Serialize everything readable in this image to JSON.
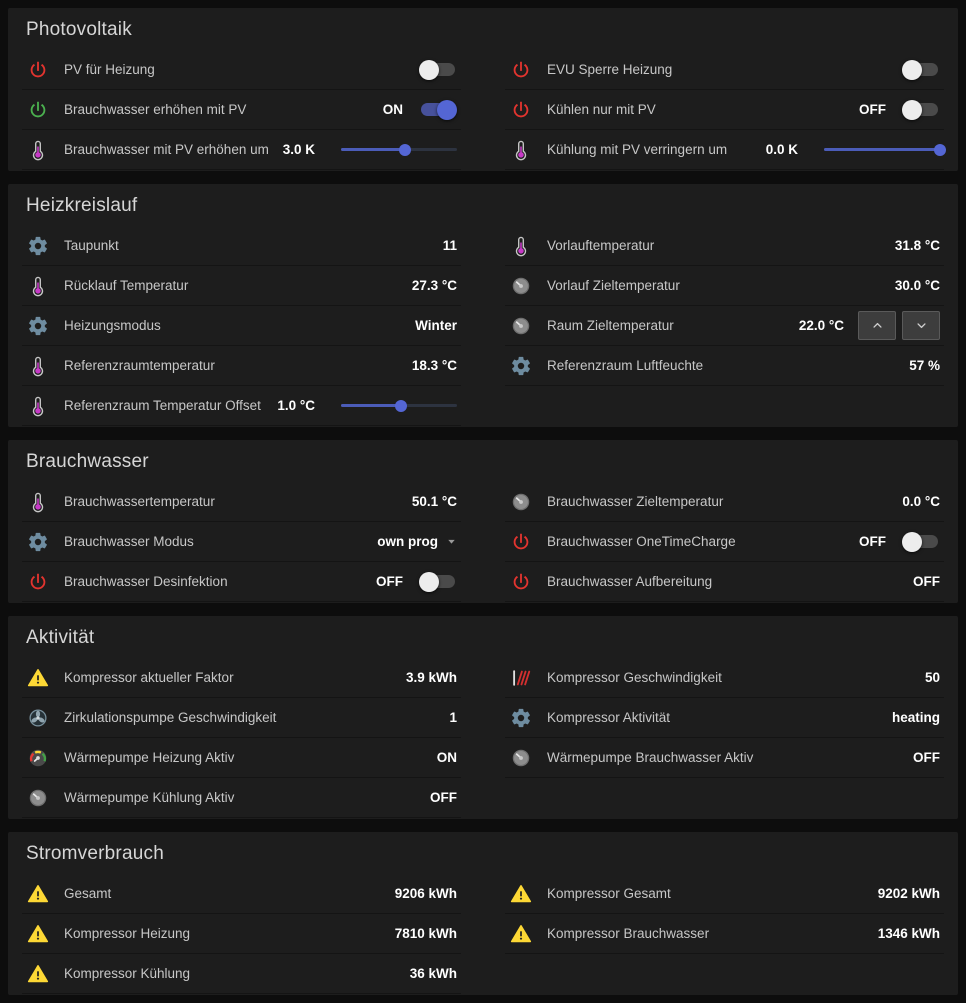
{
  "colors": {
    "page_bg": "#0d0d0d",
    "card_bg": "#1d1d1d",
    "accent_blue": "#5466d4",
    "power_red": "#e3342f",
    "power_green": "#4bb04f",
    "gear_blue_gray": "#6e8ca0",
    "thermometer_purple": "#c73ac7",
    "warning_yellow": "#fdd835"
  },
  "sections": [
    {
      "title": "Photovoltaik",
      "left": [
        {
          "icon": "power-icon",
          "icon_color": "#e3342f",
          "label": "PV für Heizung",
          "control": "toggle",
          "on": false
        },
        {
          "icon": "power-icon",
          "icon_color": "#4bb04f",
          "label": "Brauchwasser erhöhen mit PV",
          "state": "ON",
          "control": "toggle",
          "on": true
        },
        {
          "icon": "thermometer-icon",
          "label": "Brauchwasser mit PV erhöhen um",
          "value": "3.0 K",
          "control": "slider",
          "slider_percent": 55
        }
      ],
      "right": [
        {
          "icon": "power-icon",
          "icon_color": "#e3342f",
          "label": "EVU Sperre Heizung",
          "control": "toggle",
          "on": false
        },
        {
          "icon": "power-icon",
          "icon_color": "#e3342f",
          "label": "Kühlen nur mit PV",
          "state": "OFF",
          "control": "toggle",
          "on": false
        },
        {
          "icon": "thermometer-icon",
          "label": "Kühlung mit PV verringern um",
          "value": "0.0 K",
          "control": "slider",
          "slider_percent": 100
        }
      ]
    },
    {
      "title": "Heizkreislauf",
      "left": [
        {
          "icon": "gear-icon",
          "label": "Taupunkt",
          "value": "11"
        },
        {
          "icon": "thermometer-icon",
          "label": "Rücklauf Temperatur",
          "value": "27.3 °C"
        },
        {
          "icon": "gear-icon",
          "label": "Heizungsmodus",
          "value": "Winter"
        },
        {
          "icon": "thermometer-icon",
          "label": "Referenzraumtemperatur",
          "value": "18.3 °C"
        },
        {
          "icon": "thermometer-icon",
          "label": "Referenzraum Temperatur Offset",
          "value": "1.0 °C",
          "control": "slider",
          "slider_percent": 52
        }
      ],
      "right": [
        {
          "icon": "thermometer-icon",
          "label": "Vorlauftemperatur",
          "value": "31.8 °C"
        },
        {
          "icon": "gauge-icon",
          "label": "Vorlauf Zieltemperatur",
          "value": "30.0 °C"
        },
        {
          "icon": "gauge-icon",
          "label": "Raum Zieltemperatur",
          "value": "22.0 °C",
          "control": "stepper"
        },
        {
          "icon": "gear-icon",
          "label": "Referenzraum Luftfeuchte",
          "value": "57 %"
        }
      ]
    },
    {
      "title": "Brauchwasser",
      "left": [
        {
          "icon": "thermometer-icon",
          "label": "Brauchwassertemperatur",
          "value": "50.1 °C"
        },
        {
          "icon": "gear-icon",
          "label": "Brauchwasser Modus",
          "value": "own prog",
          "control": "select"
        },
        {
          "icon": "power-icon",
          "icon_color": "#e3342f",
          "label": "Brauchwasser Desinfektion",
          "state": "OFF",
          "control": "toggle",
          "on": false
        }
      ],
      "right": [
        {
          "icon": "gauge-icon",
          "label": "Brauchwasser Zieltemperatur",
          "value": "0.0 °C"
        },
        {
          "icon": "power-icon",
          "icon_color": "#e3342f",
          "label": "Brauchwasser OneTimeCharge",
          "state": "OFF",
          "control": "toggle",
          "on": false
        },
        {
          "icon": "power-icon",
          "icon_color": "#e3342f",
          "label": "Brauchwasser Aufbereitung",
          "value": "OFF"
        }
      ]
    },
    {
      "title": "Aktivität",
      "left": [
        {
          "icon": "warning-icon",
          "label": "Kompressor aktueller Faktor",
          "value": "3.9 kWh"
        },
        {
          "icon": "pump-icon",
          "label": "Zirkulationspumpe Geschwindigkeit",
          "value": "1"
        },
        {
          "icon": "gauge-color-icon",
          "label": "Wärmepumpe Heizung Aktiv",
          "value": "ON"
        },
        {
          "icon": "gauge-icon",
          "label": "Wärmepumpe Kühlung Aktiv",
          "value": "OFF"
        }
      ],
      "right": [
        {
          "icon": "speed-icon",
          "label": "Kompressor Geschwindigkeit",
          "value": "50"
        },
        {
          "icon": "gear-icon",
          "label": "Kompressor Aktivität",
          "value": "heating"
        },
        {
          "icon": "gauge-icon",
          "label": "Wärmepumpe Brauchwasser Aktiv",
          "value": "OFF"
        }
      ]
    },
    {
      "title": "Stromverbrauch",
      "left": [
        {
          "icon": "warning-icon",
          "label": "Gesamt",
          "value": "9206 kWh"
        },
        {
          "icon": "warning-icon",
          "label": "Kompressor Heizung",
          "value": "7810 kWh"
        },
        {
          "icon": "warning-icon",
          "label": "Kompressor Kühlung",
          "value": "36 kWh"
        }
      ],
      "right": [
        {
          "icon": "warning-icon",
          "label": "Kompressor Gesamt",
          "value": "9202 kWh"
        },
        {
          "icon": "warning-icon",
          "label": "Kompressor Brauchwasser",
          "value": "1346 kWh"
        }
      ]
    }
  ]
}
